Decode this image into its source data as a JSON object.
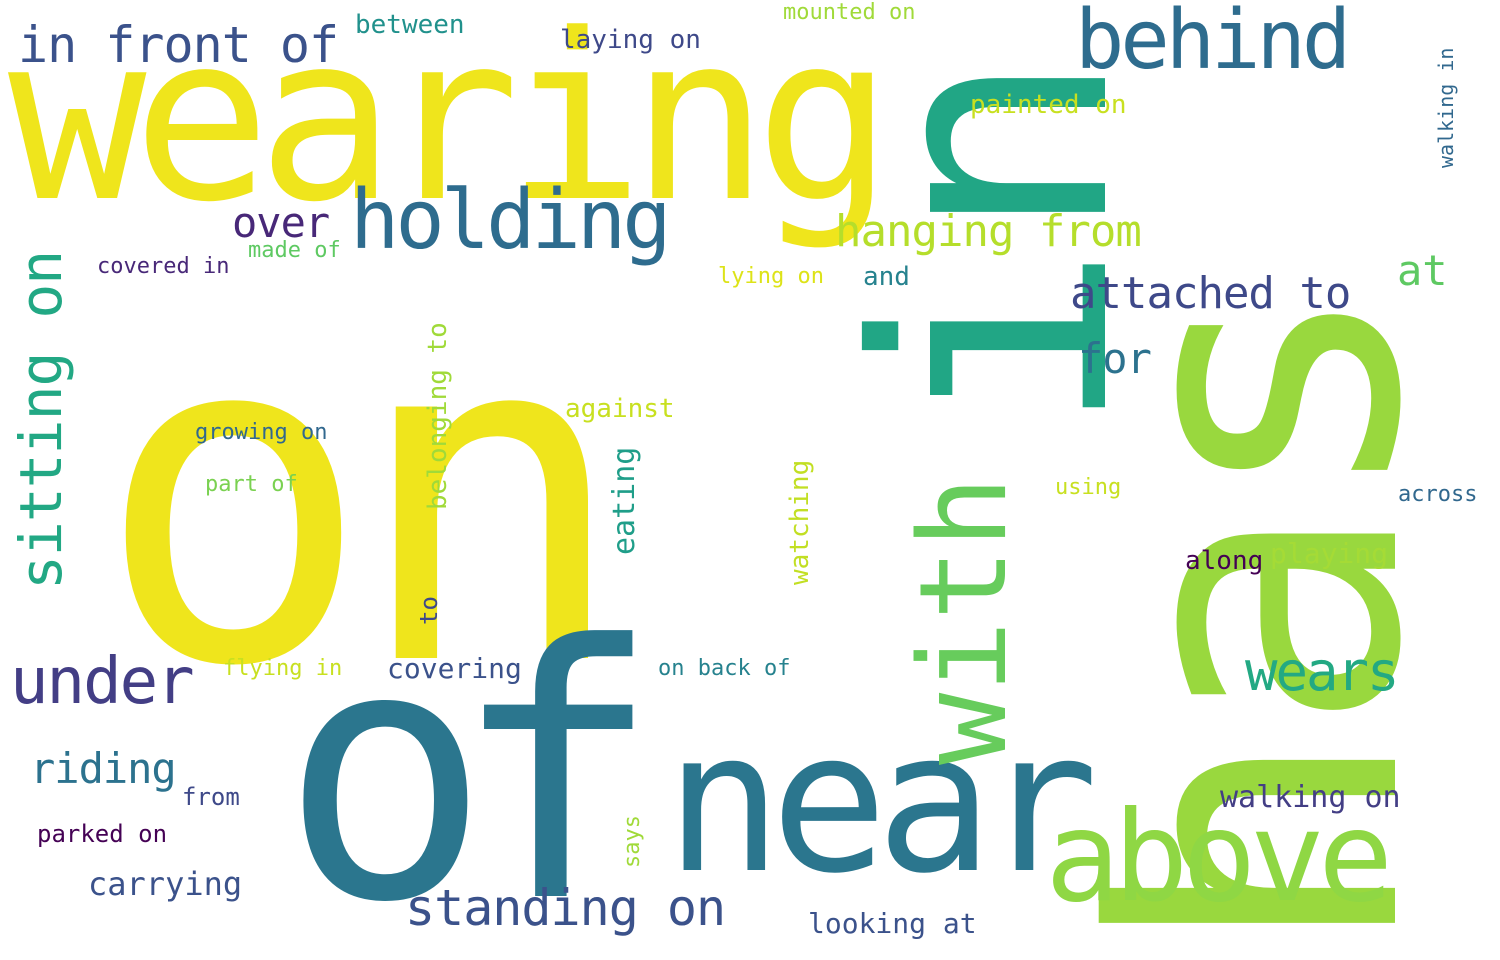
{
  "words": [
    {
      "text": "on",
      "color": "#efe51c"
    },
    {
      "text": "wearing",
      "color": "#efe51c"
    },
    {
      "text": "in",
      "color": "#21a685"
    },
    {
      "text": "has",
      "color": "#99d83e"
    },
    {
      "text": "of",
      "color": "#2b768e"
    },
    {
      "text": "near",
      "color": "#2b768e"
    },
    {
      "text": "with",
      "color": "#67cc5c"
    },
    {
      "text": "above",
      "color": "#8fd744"
    },
    {
      "text": "behind",
      "color": "#2e6c8e"
    },
    {
      "text": "holding",
      "color": "#2e6c8e"
    },
    {
      "text": "in front of",
      "color": "#3b528b"
    },
    {
      "text": "sitting on",
      "color": "#22a884"
    },
    {
      "text": "under",
      "color": "#433e85"
    },
    {
      "text": "standing on",
      "color": "#3b528b"
    },
    {
      "text": "wears",
      "color": "#23a983"
    },
    {
      "text": "hanging from",
      "color": "#b5de2b"
    },
    {
      "text": "attached to",
      "color": "#3e4989"
    },
    {
      "text": "over",
      "color": "#482878"
    },
    {
      "text": "riding",
      "color": "#2c728e"
    },
    {
      "text": "for",
      "color": "#2c728e"
    },
    {
      "text": "at",
      "color": "#5ec962"
    },
    {
      "text": "carrying",
      "color": "#3b528b"
    },
    {
      "text": "walking on",
      "color": "#433e85"
    },
    {
      "text": "looking at",
      "color": "#3b528b"
    },
    {
      "text": "covering",
      "color": "#3b528b"
    },
    {
      "text": "playing",
      "color": "#a5db36"
    },
    {
      "text": "between",
      "color": "#21918c"
    },
    {
      "text": "laying on",
      "color": "#3e4989"
    },
    {
      "text": "painted on",
      "color": "#c8e020"
    },
    {
      "text": "against",
      "color": "#c8e020"
    },
    {
      "text": "along",
      "color": "#440154"
    },
    {
      "text": "belonging to",
      "color": "#a0da39"
    },
    {
      "text": "eating",
      "color": "#1f9e89"
    },
    {
      "text": "watching",
      "color": "#c2df23"
    },
    {
      "text": "parked on",
      "color": "#440154"
    },
    {
      "text": "from",
      "color": "#3e4989"
    },
    {
      "text": "growing on",
      "color": "#31688e"
    },
    {
      "text": "covered in",
      "color": "#482878"
    },
    {
      "text": "on back of",
      "color": "#26828e"
    },
    {
      "text": "made of",
      "color": "#5ec962"
    },
    {
      "text": "and",
      "color": "#26828e"
    },
    {
      "text": "part of",
      "color": "#7ad151"
    },
    {
      "text": "flying in",
      "color": "#c8e020"
    },
    {
      "text": "across",
      "color": "#31688e"
    },
    {
      "text": "lying on",
      "color": "#dde318"
    },
    {
      "text": "using",
      "color": "#c8e020"
    },
    {
      "text": "mounted on",
      "color": "#a0da39"
    },
    {
      "text": "to",
      "color": "#3e4989"
    },
    {
      "text": "says",
      "color": "#a0da39"
    },
    {
      "text": "walking in",
      "color": "#31688e"
    }
  ]
}
